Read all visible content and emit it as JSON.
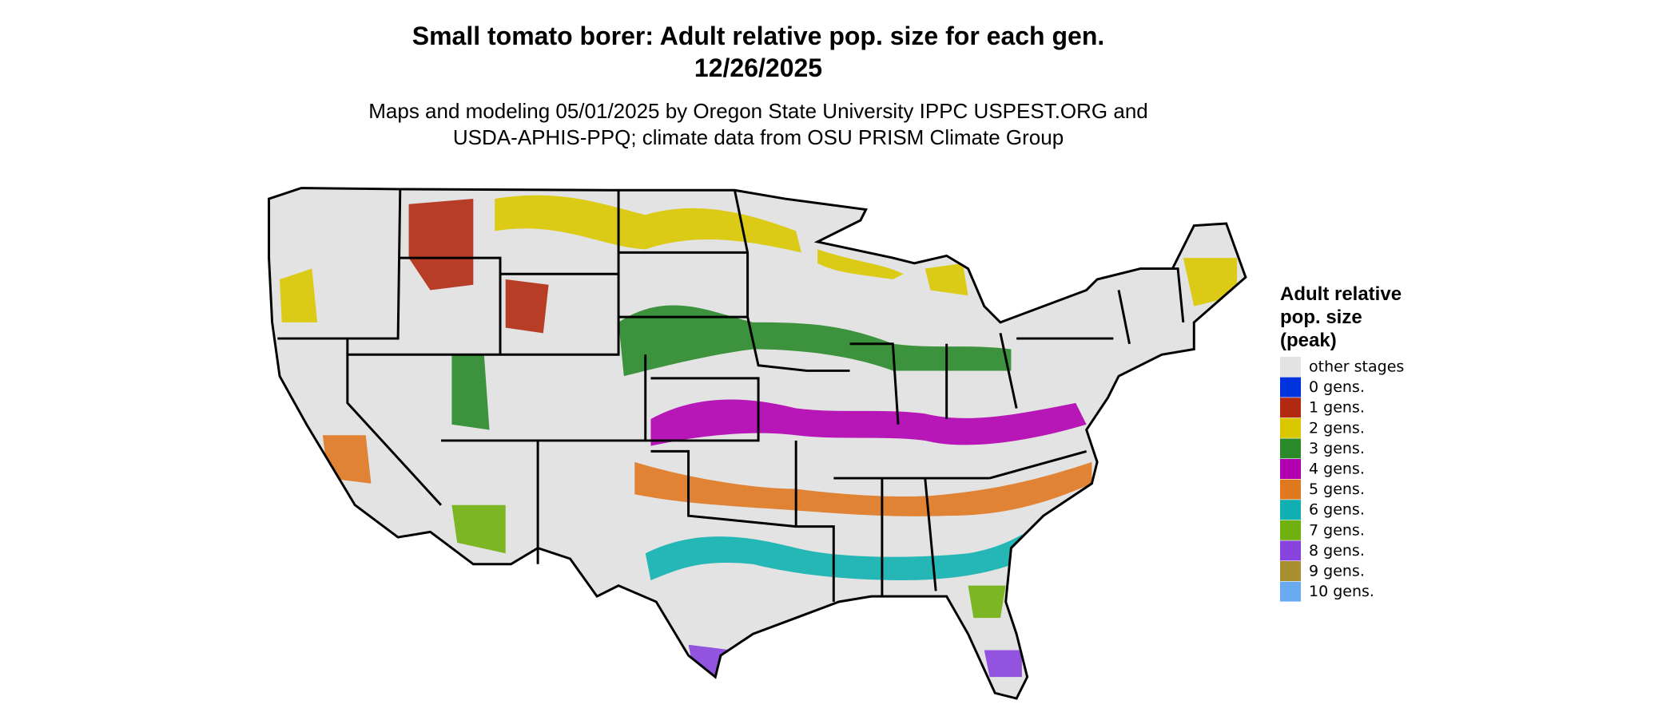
{
  "title": "Small tomato borer: Adult relative pop. size for each gen.",
  "date": "12/26/2025",
  "subtitle": [
    "Maps and modeling 05/01/2025 by Oregon State University IPPC USPEST.ORG and",
    "USDA-APHIS-PPQ; climate data from OSU PRISM Climate Group"
  ],
  "legend": {
    "title": [
      "Adult relative",
      "pop. size",
      "(peak)"
    ],
    "items": [
      {
        "label": "other stages",
        "color": "#e3e3e3"
      },
      {
        "label": "0 gens.",
        "color": "#0033dd"
      },
      {
        "label": "1 gens.",
        "color": "#b22a12"
      },
      {
        "label": "2 gens.",
        "color": "#d9c800"
      },
      {
        "label": "3 gens.",
        "color": "#2a8a2a"
      },
      {
        "label": "4 gens.",
        "color": "#b000b0"
      },
      {
        "label": "5 gens.",
        "color": "#e07820"
      },
      {
        "label": "6 gens.",
        "color": "#10b0b0"
      },
      {
        "label": "7 gens.",
        "color": "#70b010"
      },
      {
        "label": "8 gens.",
        "color": "#8844dd"
      },
      {
        "label": "9 gens.",
        "color": "#a89030"
      },
      {
        "label": "10 gens.",
        "color": "#6aaaf0"
      }
    ]
  }
}
